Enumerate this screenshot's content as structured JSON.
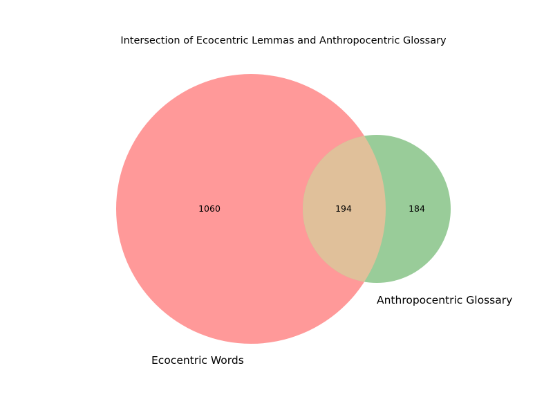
{
  "chart_data": {
    "type": "venn",
    "title": "Intersection of Ecocentric Lemmas and Anthropocentric Glossary",
    "sets": [
      {
        "name": "Ecocentric Words",
        "only_count": "1060",
        "color": "#ff9999"
      },
      {
        "name": "Anthropocentric Glossary",
        "only_count": "184",
        "color": "#99cc99"
      }
    ],
    "intersection": {
      "count": "194",
      "color": "#e0c09a"
    }
  }
}
